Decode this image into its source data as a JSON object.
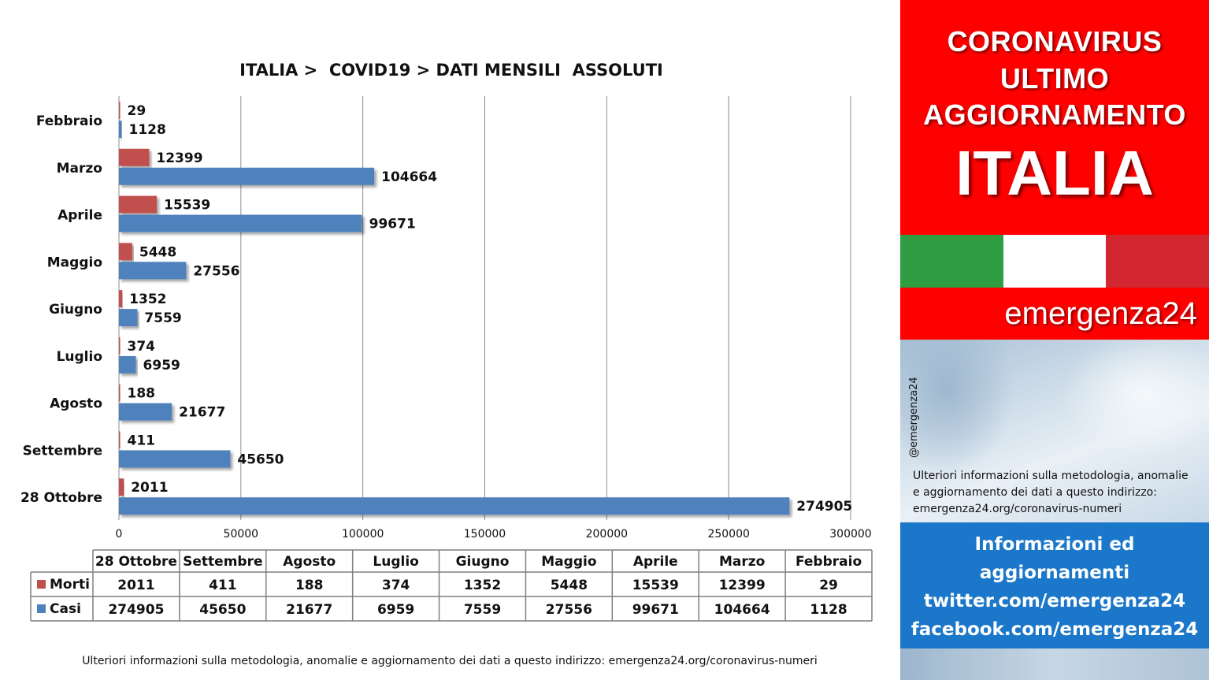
{
  "chart_data": {
    "type": "bar",
    "orientation": "horizontal",
    "title": "ITALIA >  COVID19 > DATI MENSILI  ASSOLUTI",
    "categories": [
      "Febbraio",
      "Marzo",
      "Aprile",
      "Maggio",
      "Giugno",
      "Luglio",
      "Agosto",
      "Settembre",
      "28 Ottobre"
    ],
    "series": [
      {
        "name": "Morti",
        "color": "#c0504d",
        "values": [
          29,
          12399,
          15539,
          5448,
          1352,
          374,
          188,
          411,
          2011
        ]
      },
      {
        "name": "Casi",
        "color": "#4f81bd",
        "values": [
          1128,
          104664,
          99671,
          27556,
          7559,
          6959,
          21677,
          45650,
          274905
        ]
      }
    ],
    "xlim": [
      0,
      300000
    ],
    "xticks": [
      0,
      50000,
      100000,
      150000,
      200000,
      250000,
      300000
    ],
    "grid": "vertical",
    "legend": "table-below",
    "table": {
      "columns": [
        "28 Ottobre",
        "Settembre",
        "Agosto",
        "Luglio",
        "Giugno",
        "Maggio",
        "Aprile",
        "Marzo",
        "Febbraio"
      ],
      "rows": [
        {
          "label": "Morti",
          "color": "#c0504d",
          "values": [
            "2011",
            "411",
            "188",
            "374",
            "1352",
            "5448",
            "15539",
            "12399",
            "29"
          ]
        },
        {
          "label": "Casi",
          "color": "#4f81bd",
          "values": [
            "274905",
            "45650",
            "21677",
            "6959",
            "7559",
            "27556",
            "99671",
            "104664",
            "1128"
          ]
        }
      ]
    }
  },
  "footnote": "Ulteriori informazioni sulla metodologia, anomalie e aggiornamento dei dati a questo indirizzo: emergenza24.org/coronavirus-numeri",
  "side": {
    "headline": [
      "CORONAVIRUS",
      "ULTIMO",
      "AGGIORNAMENTO"
    ],
    "country": "ITALIA",
    "flag_colors": [
      "#2f9e43",
      "#ffffff",
      "#d22630"
    ],
    "brand": "emergenza24",
    "handle": "@emergenza24",
    "info": [
      "Ulteriori informazioni sulla metodologia, anomalie",
      "e aggiornamento dei dati a questo indirizzo:",
      "emergenza24.org/coronavirus-numeri"
    ],
    "contact": [
      "Informazioni ed",
      "aggiornamenti",
      "twitter.com/emergenza24",
      "facebook.com/emergenza24"
    ]
  }
}
